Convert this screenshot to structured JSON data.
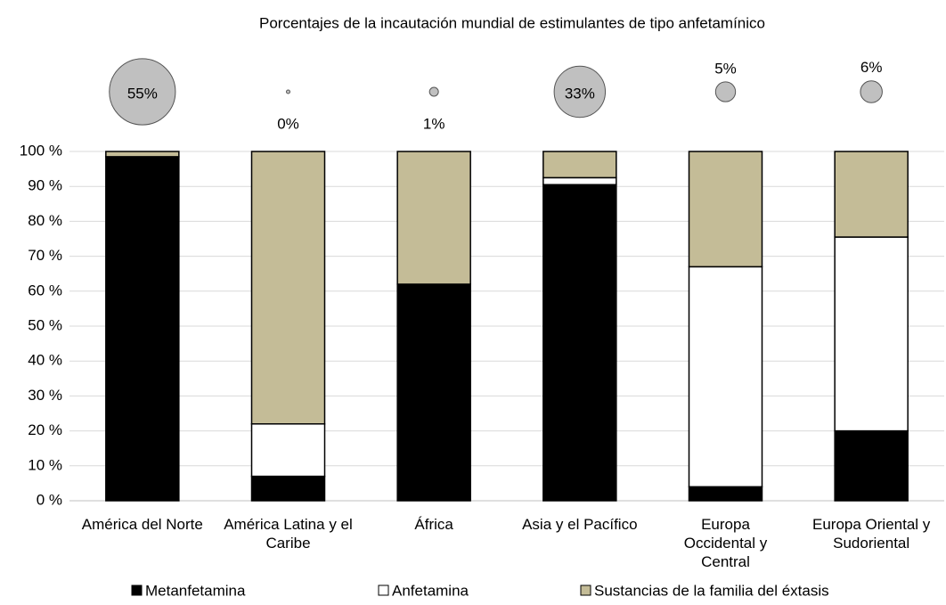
{
  "chart_data": {
    "type": "stacked_bar_percent",
    "title": "Porcentajes de la incautación mundial de estimulantes de tipo anfetamínico",
    "categories": [
      "América del Norte",
      "América Latina y el Caribe",
      "África",
      "Asia y el Pacífico",
      "Europa Occidental y Central",
      "Europa Oriental y Sudoriental"
    ],
    "series": [
      {
        "name": "Metanfetamina",
        "color": "#000000",
        "values": [
          98.5,
          7,
          62,
          90.5,
          4,
          20
        ]
      },
      {
        "name": "Anfetamina",
        "color": "#ffffff",
        "values": [
          0,
          15,
          0,
          2,
          63,
          55.5
        ]
      },
      {
        "name": "Sustancias de la familia del éxtasis",
        "color": "#c4bc97",
        "values": [
          1.5,
          78,
          38,
          7.5,
          33,
          24.5
        ]
      }
    ],
    "bubbles": {
      "color": "#c0c0c0",
      "values": [
        55,
        0,
        1,
        33,
        5,
        6
      ],
      "value_labels": [
        "55%",
        "0%",
        "1%",
        "33%",
        "5%",
        "6%"
      ]
    },
    "ylim": [
      0,
      100
    ],
    "yticks": [
      {
        "value": 0,
        "label": "0 %"
      },
      {
        "value": 10,
        "label": "10 %"
      },
      {
        "value": 20,
        "label": "20 %"
      },
      {
        "value": 30,
        "label": "30 %"
      },
      {
        "value": 40,
        "label": "40 %"
      },
      {
        "value": 50,
        "label": "50 %"
      },
      {
        "value": 60,
        "label": "60 %"
      },
      {
        "value": 70,
        "label": "70 %"
      },
      {
        "value": 80,
        "label": "80 %"
      },
      {
        "value": 90,
        "label": "90 %"
      },
      {
        "value": 100,
        "label": "100 %"
      }
    ],
    "grid": true,
    "legend": "bottom"
  }
}
